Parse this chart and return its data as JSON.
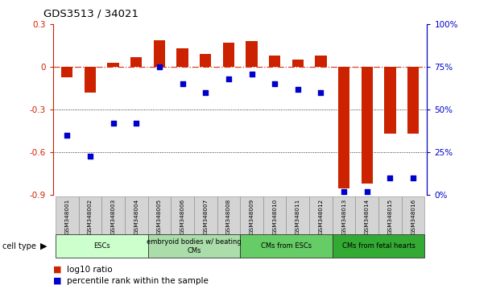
{
  "title": "GDS3513 / 34021",
  "samples": [
    "GSM348001",
    "GSM348002",
    "GSM348003",
    "GSM348004",
    "GSM348005",
    "GSM348006",
    "GSM348007",
    "GSM348008",
    "GSM348009",
    "GSM348010",
    "GSM348011",
    "GSM348012",
    "GSM348013",
    "GSM348014",
    "GSM348015",
    "GSM348016"
  ],
  "log10_ratio": [
    -0.07,
    -0.18,
    0.03,
    0.07,
    0.19,
    0.13,
    0.09,
    0.17,
    0.18,
    0.08,
    0.05,
    0.08,
    -0.85,
    -0.82,
    -0.47,
    -0.47
  ],
  "percentile_rank": [
    35,
    23,
    42,
    42,
    75,
    65,
    60,
    68,
    71,
    65,
    62,
    60,
    2,
    2,
    10,
    10
  ],
  "ylim_left": [
    -0.9,
    0.3
  ],
  "ylim_right": [
    0,
    100
  ],
  "yticks_left": [
    -0.9,
    -0.6,
    -0.3,
    0.0,
    0.3
  ],
  "yticks_right": [
    0,
    25,
    50,
    75,
    100
  ],
  "ytick_labels_left": [
    "-0.9",
    "-0.6",
    "-0.3",
    "0",
    "0.3"
  ],
  "ytick_labels_right": [
    "0%",
    "25%",
    "50%",
    "75%",
    "100%"
  ],
  "bar_color": "#cc2200",
  "dot_color": "#0000cc",
  "cell_groups": [
    {
      "label": "ESCs",
      "start": 0,
      "end": 3
    },
    {
      "label": "embryoid bodies w/ beating\nCMs",
      "start": 4,
      "end": 7
    },
    {
      "label": "CMs from ESCs",
      "start": 8,
      "end": 11
    },
    {
      "label": "CMs from fetal hearts",
      "start": 12,
      "end": 15
    }
  ],
  "cell_group_colors": [
    "#ccffcc",
    "#aaddaa",
    "#66cc66",
    "#33aa33"
  ],
  "legend_bar_label": "log10 ratio",
  "legend_dot_label": "percentile rank within the sample",
  "hline_y": 0.0,
  "dotted_lines": [
    -0.3,
    -0.6
  ],
  "bg_color": "#ffffff",
  "bar_width": 0.5,
  "xlim": [
    -0.6,
    15.6
  ]
}
